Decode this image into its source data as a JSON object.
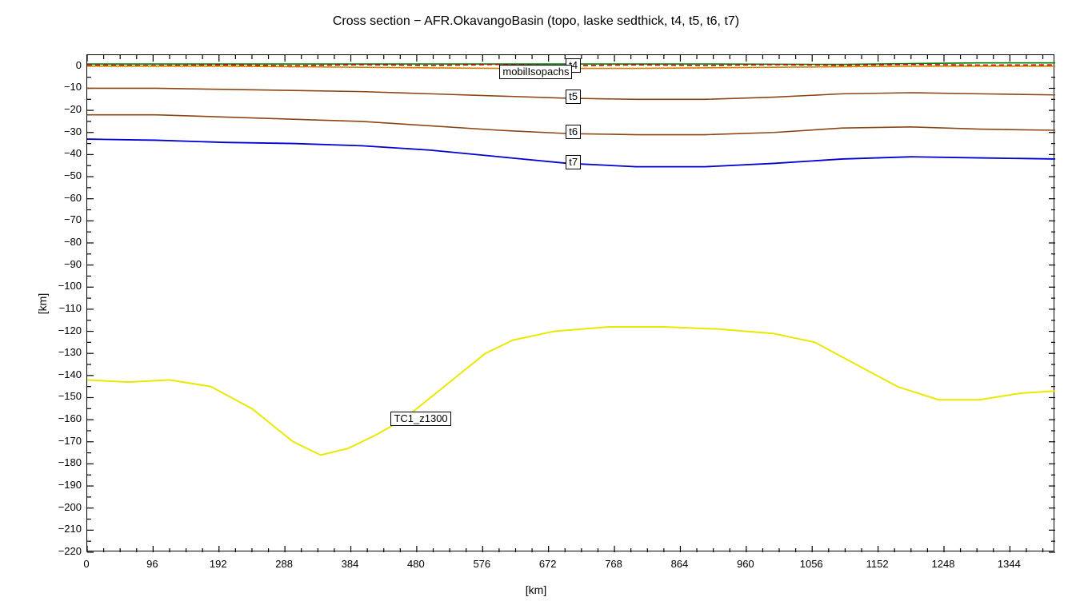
{
  "title": "Cross section − AFR.OkavangoBasin (topo, laske sedthick, t4, t5, t6, t7)",
  "xlabel": "[km]",
  "ylabel": "[km]",
  "plot": {
    "background_color": "#ffffff",
    "border_color": "#000000",
    "xlim": [
      0,
      1410
    ],
    "ylim": [
      -220,
      5
    ],
    "xtick_start": 0,
    "xtick_step": 96,
    "xtick_end": 1344,
    "x_minor_step": 24,
    "ytick_start": 0,
    "ytick_step": -10,
    "ytick_end": -220,
    "y_minor_step": 5,
    "tick_length_major": 8,
    "tick_length_minor": 5,
    "tick_fontsize": 13,
    "title_fontsize": 16,
    "label_fontsize": 14
  },
  "series": [
    {
      "name": "topo",
      "color": "#008000",
      "width": 1.6,
      "dash": null,
      "points": [
        [
          0,
          1
        ],
        [
          150,
          1
        ],
        [
          300,
          1
        ],
        [
          500,
          1
        ],
        [
          700,
          1
        ],
        [
          900,
          1
        ],
        [
          1100,
          0.8
        ],
        [
          1200,
          1.2
        ],
        [
          1300,
          1.5
        ],
        [
          1410,
          1.5
        ]
      ]
    },
    {
      "name": "sedthick",
      "color": "#d00000",
      "width": 1.6,
      "dash": "6,4",
      "points": [
        [
          0,
          0.5
        ],
        [
          100,
          0.3
        ],
        [
          200,
          0.6
        ],
        [
          300,
          0.2
        ],
        [
          400,
          0.7
        ],
        [
          500,
          0.3
        ],
        [
          600,
          0.8
        ],
        [
          700,
          0.2
        ],
        [
          800,
          0.6
        ],
        [
          900,
          0.3
        ],
        [
          1000,
          0.7
        ],
        [
          1100,
          0.4
        ],
        [
          1200,
          0.8
        ],
        [
          1300,
          0.5
        ],
        [
          1410,
          0.6
        ]
      ]
    },
    {
      "name": "t4",
      "color": "#d08000",
      "width": 1.6,
      "dash": null,
      "points": [
        [
          0,
          0
        ],
        [
          200,
          0
        ],
        [
          400,
          -0.5
        ],
        [
          600,
          -1
        ],
        [
          800,
          -1
        ],
        [
          1000,
          -0.5
        ],
        [
          1200,
          0
        ],
        [
          1410,
          0
        ]
      ]
    },
    {
      "name": "t5",
      "color": "#8b4513",
      "width": 1.6,
      "dash": null,
      "points": [
        [
          0,
          -10
        ],
        [
          100,
          -10
        ],
        [
          200,
          -10.5
        ],
        [
          300,
          -11
        ],
        [
          400,
          -11.5
        ],
        [
          500,
          -12.5
        ],
        [
          600,
          -13.5
        ],
        [
          700,
          -14.5
        ],
        [
          800,
          -15
        ],
        [
          900,
          -15
        ],
        [
          1000,
          -14
        ],
        [
          1100,
          -12.5
        ],
        [
          1200,
          -12
        ],
        [
          1300,
          -12.5
        ],
        [
          1410,
          -13
        ]
      ]
    },
    {
      "name": "t6",
      "color": "#8b4513",
      "width": 1.6,
      "dash": null,
      "points": [
        [
          0,
          -22
        ],
        [
          100,
          -22
        ],
        [
          200,
          -23
        ],
        [
          300,
          -24
        ],
        [
          400,
          -25
        ],
        [
          500,
          -27
        ],
        [
          600,
          -29
        ],
        [
          700,
          -30.5
        ],
        [
          800,
          -31
        ],
        [
          900,
          -31
        ],
        [
          1000,
          -30
        ],
        [
          1100,
          -28
        ],
        [
          1200,
          -27.5
        ],
        [
          1300,
          -28.5
        ],
        [
          1410,
          -29
        ]
      ]
    },
    {
      "name": "t7",
      "color": "#0000d0",
      "width": 1.8,
      "dash": null,
      "points": [
        [
          0,
          -33
        ],
        [
          100,
          -33.5
        ],
        [
          200,
          -34.5
        ],
        [
          300,
          -35
        ],
        [
          400,
          -36
        ],
        [
          500,
          -38
        ],
        [
          600,
          -41
        ],
        [
          700,
          -44
        ],
        [
          800,
          -45.5
        ],
        [
          900,
          -45.5
        ],
        [
          1000,
          -44
        ],
        [
          1100,
          -42
        ],
        [
          1200,
          -41
        ],
        [
          1300,
          -41.5
        ],
        [
          1410,
          -42
        ]
      ]
    },
    {
      "name": "TC1_z1300",
      "color": "#e8e800",
      "width": 2.0,
      "dash": null,
      "points": [
        [
          0,
          -142
        ],
        [
          60,
          -143
        ],
        [
          120,
          -142
        ],
        [
          180,
          -145
        ],
        [
          240,
          -155
        ],
        [
          300,
          -170
        ],
        [
          340,
          -176
        ],
        [
          380,
          -173
        ],
        [
          420,
          -167
        ],
        [
          460,
          -160
        ],
        [
          500,
          -150
        ],
        [
          540,
          -140
        ],
        [
          580,
          -130
        ],
        [
          620,
          -124
        ],
        [
          680,
          -120
        ],
        [
          760,
          -118
        ],
        [
          840,
          -118
        ],
        [
          920,
          -119
        ],
        [
          1000,
          -121
        ],
        [
          1060,
          -125
        ],
        [
          1120,
          -135
        ],
        [
          1180,
          -145
        ],
        [
          1240,
          -151
        ],
        [
          1300,
          -151
        ],
        [
          1360,
          -148
        ],
        [
          1410,
          -147
        ]
      ]
    }
  ],
  "series_labels": [
    {
      "text": "t4",
      "x": 710,
      "y": 0,
      "box": true
    },
    {
      "text": "mobilIsopachs",
      "x": 660,
      "y": -3,
      "box": true,
      "wide": true
    },
    {
      "text": "t5",
      "x": 710,
      "y": -14,
      "box": true
    },
    {
      "text": "t6",
      "x": 710,
      "y": -30,
      "box": true
    },
    {
      "text": "t7",
      "x": 710,
      "y": -44,
      "box": true
    },
    {
      "text": "TC1_z1300",
      "x": 455,
      "y": -160,
      "box": true
    }
  ]
}
